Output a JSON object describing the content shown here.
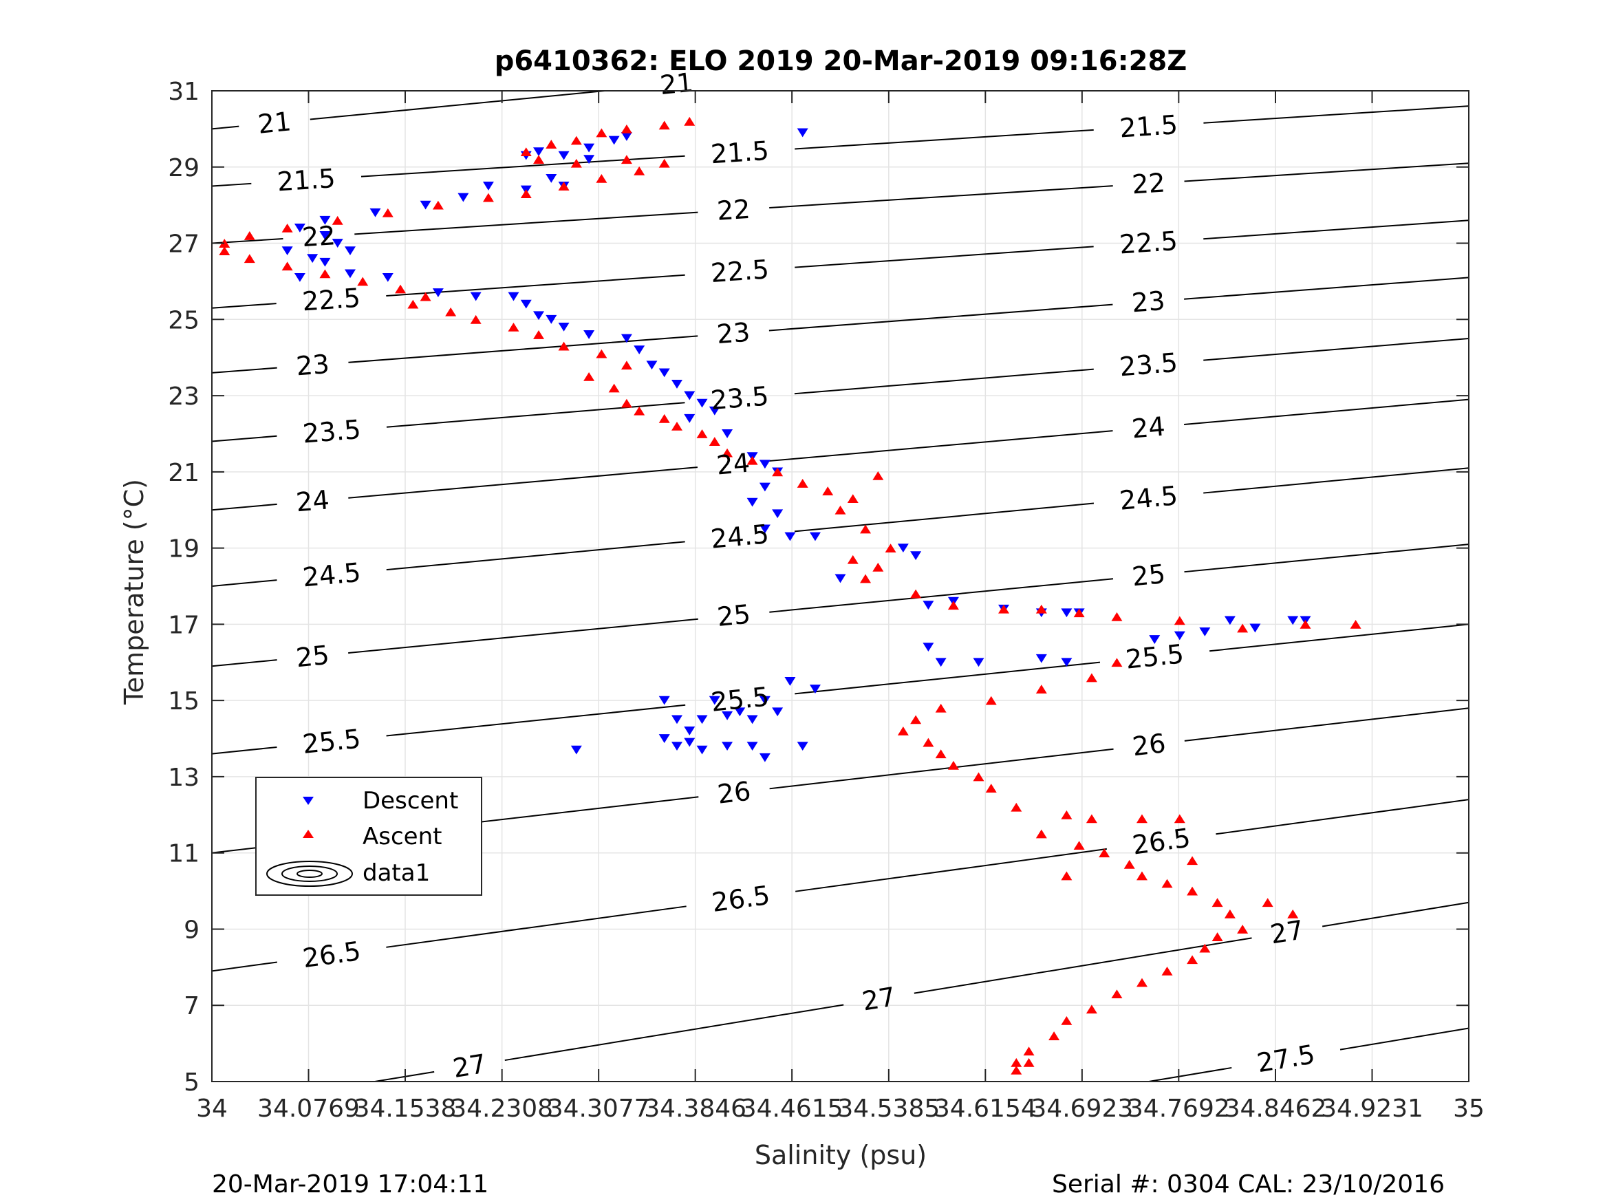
{
  "chart_data": {
    "type": "scatter",
    "title": "p6410362: ELO 2019 20-Mar-2019 09:16:28Z",
    "xlabel": "Salinity (psu)",
    "ylabel": "Temperature (°C)",
    "xlim": [
      34,
      35
    ],
    "ylim": [
      5,
      31
    ],
    "x_ticks": [
      34,
      34.0769,
      34.1538,
      34.2308,
      34.3077,
      34.3846,
      34.4615,
      34.5385,
      34.6154,
      34.6923,
      34.7692,
      34.8462,
      34.9231,
      35
    ],
    "x_tick_labels": [
      "34",
      "34.0769",
      "34.1538",
      "34.2308",
      "34.3077",
      "34.3846",
      "34.4615",
      "34.5385",
      "34.6154",
      "34.6923",
      "34.7692",
      "34.8462",
      "34.9231",
      "35"
    ],
    "y_ticks": [
      5,
      7,
      9,
      11,
      13,
      15,
      17,
      19,
      21,
      23,
      25,
      27,
      29,
      31
    ],
    "y_tick_labels": [
      "5",
      "7",
      "9",
      "11",
      "13",
      "15",
      "17",
      "19",
      "21",
      "23",
      "25",
      "27",
      "29",
      "31"
    ],
    "grid": true,
    "legend_placement": "lower-left",
    "legend": [
      "Descent",
      "Ascent",
      "data1"
    ],
    "contours": {
      "label": "data1",
      "levels": [
        21,
        21.5,
        22,
        22.5,
        23,
        23.5,
        24,
        24.5,
        25,
        25.5,
        26,
        26.5,
        27,
        27.5
      ],
      "lines": [
        {
          "level": 21,
          "y_at_34": 30.0,
          "y_at_35": 33.2,
          "labels": [
            [
              34.05,
              30.1
            ],
            [
              34.37,
              31.1
            ]
          ]
        },
        {
          "level": 21.5,
          "y_at_34": 28.5,
          "y_at_35": 30.6,
          "labels": [
            [
              34.075,
              28.7
            ],
            [
              34.42,
              29.4
            ],
            [
              34.745,
              30.2
            ]
          ]
        },
        {
          "level": 22,
          "y_at_34": 27.0,
          "y_at_35": 29.1,
          "labels": [
            [
              34.085,
              27.2
            ],
            [
              34.415,
              27.9
            ],
            [
              34.745,
              28.7
            ]
          ]
        },
        {
          "level": 22.5,
          "y_at_34": 25.3,
          "y_at_35": 27.6,
          "labels": [
            [
              34.095,
              25.5
            ],
            [
              34.42,
              26.3
            ],
            [
              34.745,
              27.1
            ]
          ]
        },
        {
          "level": 23,
          "y_at_34": 23.6,
          "y_at_35": 26.1,
          "labels": [
            [
              34.08,
              23.9
            ],
            [
              34.415,
              24.6
            ],
            [
              34.745,
              25.5
            ]
          ]
        },
        {
          "level": 23.5,
          "y_at_34": 21.8,
          "y_at_35": 24.5,
          "labels": [
            [
              34.095,
              22.2
            ],
            [
              34.42,
              22.9
            ],
            [
              34.745,
              23.9
            ]
          ]
        },
        {
          "level": 24,
          "y_at_34": 20.0,
          "y_at_35": 22.9,
          "labels": [
            [
              34.08,
              20.3
            ],
            [
              34.415,
              21.1
            ],
            [
              34.745,
              22.2
            ]
          ]
        },
        {
          "level": 24.5,
          "y_at_34": 18.0,
          "y_at_35": 21.1,
          "labels": [
            [
              34.095,
              18.4
            ],
            [
              34.42,
              19.3
            ],
            [
              34.745,
              20.4
            ]
          ]
        },
        {
          "level": 25,
          "y_at_34": 15.9,
          "y_at_35": 19.1,
          "labels": [
            [
              34.08,
              16.2
            ],
            [
              34.415,
              17.3
            ],
            [
              34.745,
              18.4
            ]
          ]
        },
        {
          "level": 25.5,
          "y_at_34": 13.6,
          "y_at_35": 17.0,
          "labels": [
            [
              34.095,
              14.0
            ],
            [
              34.42,
              15.1
            ],
            [
              34.75,
              16.2
            ]
          ]
        },
        {
          "level": 26,
          "y_at_34": 11.0,
          "y_at_35": 14.8,
          "labels": [
            [
              34.08,
              11.4
            ],
            [
              34.415,
              12.7
            ],
            [
              34.745,
              14.0
            ]
          ]
        },
        {
          "level": 26.5,
          "y_at_34": 7.9,
          "y_at_35": 12.4,
          "labels": [
            [
              34.095,
              8.4
            ],
            [
              34.42,
              10.0
            ],
            [
              34.755,
              11.4
            ]
          ]
        },
        {
          "level": 27,
          "y_at_34": 4.3,
          "y_at_35": 9.7,
          "labels": [
            [
              34.205,
              5.4
            ],
            [
              34.53,
              7.3
            ],
            [
              34.855,
              9.0
            ]
          ]
        },
        {
          "level": 27.5,
          "y_at_34": 0.9,
          "y_at_35": 6.4,
          "labels": [
            [
              34.855,
              5.5
            ]
          ]
        }
      ]
    },
    "series": [
      {
        "name": "Descent",
        "color": "#0000ff",
        "marker": "triangle-down",
        "points": [
          [
            34.47,
            29.9
          ],
          [
            34.33,
            29.8
          ],
          [
            34.32,
            29.7
          ],
          [
            34.3,
            29.5
          ],
          [
            34.26,
            29.4
          ],
          [
            34.25,
            29.3
          ],
          [
            34.28,
            29.3
          ],
          [
            34.3,
            29.2
          ],
          [
            34.27,
            28.7
          ],
          [
            34.28,
            28.5
          ],
          [
            34.25,
            28.4
          ],
          [
            34.22,
            28.5
          ],
          [
            34.2,
            28.2
          ],
          [
            34.17,
            28.0
          ],
          [
            34.13,
            27.8
          ],
          [
            34.09,
            27.6
          ],
          [
            34.07,
            27.4
          ],
          [
            34.09,
            27.2
          ],
          [
            34.1,
            27.0
          ],
          [
            34.11,
            26.8
          ],
          [
            34.08,
            26.6
          ],
          [
            34.06,
            26.8
          ],
          [
            34.09,
            26.5
          ],
          [
            34.07,
            26.1
          ],
          [
            34.11,
            26.2
          ],
          [
            34.14,
            26.1
          ],
          [
            34.18,
            25.7
          ],
          [
            34.21,
            25.6
          ],
          [
            34.24,
            25.6
          ],
          [
            34.25,
            25.4
          ],
          [
            34.26,
            25.1
          ],
          [
            34.27,
            25.0
          ],
          [
            34.28,
            24.8
          ],
          [
            34.3,
            24.6
          ],
          [
            34.33,
            24.5
          ],
          [
            34.34,
            24.2
          ],
          [
            34.35,
            23.8
          ],
          [
            34.36,
            23.6
          ],
          [
            34.37,
            23.3
          ],
          [
            34.38,
            23.0
          ],
          [
            34.39,
            22.8
          ],
          [
            34.4,
            22.6
          ],
          [
            34.38,
            22.4
          ],
          [
            34.41,
            22.0
          ],
          [
            34.43,
            21.4
          ],
          [
            34.44,
            21.2
          ],
          [
            34.45,
            21.0
          ],
          [
            34.44,
            20.6
          ],
          [
            34.43,
            20.2
          ],
          [
            34.45,
            19.9
          ],
          [
            34.44,
            19.5
          ],
          [
            34.46,
            19.3
          ],
          [
            34.48,
            19.3
          ],
          [
            34.5,
            18.2
          ],
          [
            34.55,
            19.0
          ],
          [
            34.56,
            18.8
          ],
          [
            34.57,
            17.5
          ],
          [
            34.59,
            17.6
          ],
          [
            34.63,
            17.4
          ],
          [
            34.66,
            17.3
          ],
          [
            34.68,
            17.3
          ],
          [
            34.69,
            17.3
          ],
          [
            34.57,
            16.4
          ],
          [
            34.58,
            16.0
          ],
          [
            34.61,
            16.0
          ],
          [
            34.66,
            16.1
          ],
          [
            34.68,
            16.0
          ],
          [
            34.46,
            15.5
          ],
          [
            34.48,
            15.3
          ],
          [
            34.44,
            15.0
          ],
          [
            34.4,
            15.0
          ],
          [
            34.36,
            15.0
          ],
          [
            34.37,
            14.5
          ],
          [
            34.38,
            14.2
          ],
          [
            34.39,
            14.5
          ],
          [
            34.41,
            14.6
          ],
          [
            34.42,
            14.7
          ],
          [
            34.43,
            14.5
          ],
          [
            34.45,
            14.7
          ],
          [
            34.36,
            14.0
          ],
          [
            34.37,
            13.8
          ],
          [
            34.38,
            13.9
          ],
          [
            34.39,
            13.7
          ],
          [
            34.41,
            13.8
          ],
          [
            34.43,
            13.8
          ],
          [
            34.44,
            13.5
          ],
          [
            34.47,
            13.8
          ],
          [
            34.29,
            13.7
          ],
          [
            34.75,
            16.6
          ],
          [
            34.77,
            16.7
          ],
          [
            34.79,
            16.8
          ],
          [
            34.81,
            17.1
          ],
          [
            34.83,
            16.9
          ],
          [
            34.86,
            17.1
          ],
          [
            34.87,
            17.1
          ]
        ]
      },
      {
        "name": "Ascent",
        "color": "#ff0000",
        "marker": "triangle-up",
        "points": [
          [
            34.38,
            30.2
          ],
          [
            34.36,
            30.1
          ],
          [
            34.33,
            30.0
          ],
          [
            34.31,
            29.9
          ],
          [
            34.29,
            29.7
          ],
          [
            34.27,
            29.6
          ],
          [
            34.25,
            29.4
          ],
          [
            34.26,
            29.2
          ],
          [
            34.29,
            29.1
          ],
          [
            34.33,
            29.2
          ],
          [
            34.36,
            29.1
          ],
          [
            34.34,
            28.9
          ],
          [
            34.31,
            28.7
          ],
          [
            34.28,
            28.5
          ],
          [
            34.25,
            28.3
          ],
          [
            34.22,
            28.2
          ],
          [
            34.18,
            28.0
          ],
          [
            34.14,
            27.8
          ],
          [
            34.1,
            27.6
          ],
          [
            34.06,
            27.4
          ],
          [
            34.03,
            27.2
          ],
          [
            34.01,
            27.0
          ],
          [
            34.01,
            26.8
          ],
          [
            34.03,
            26.6
          ],
          [
            34.06,
            26.4
          ],
          [
            34.09,
            26.2
          ],
          [
            34.12,
            26.0
          ],
          [
            34.15,
            25.8
          ],
          [
            34.17,
            25.6
          ],
          [
            34.16,
            25.4
          ],
          [
            34.19,
            25.2
          ],
          [
            34.21,
            25.0
          ],
          [
            34.24,
            24.8
          ],
          [
            34.26,
            24.6
          ],
          [
            34.28,
            24.3
          ],
          [
            34.31,
            24.1
          ],
          [
            34.33,
            23.8
          ],
          [
            34.3,
            23.5
          ],
          [
            34.32,
            23.2
          ],
          [
            34.33,
            22.8
          ],
          [
            34.34,
            22.6
          ],
          [
            34.36,
            22.4
          ],
          [
            34.37,
            22.2
          ],
          [
            34.39,
            22.0
          ],
          [
            34.4,
            21.8
          ],
          [
            34.41,
            21.5
          ],
          [
            34.43,
            21.3
          ],
          [
            34.45,
            21.0
          ],
          [
            34.47,
            20.7
          ],
          [
            34.49,
            20.5
          ],
          [
            34.51,
            20.3
          ],
          [
            34.53,
            20.9
          ],
          [
            34.5,
            20.0
          ],
          [
            34.52,
            19.5
          ],
          [
            34.51,
            18.7
          ],
          [
            34.52,
            18.2
          ],
          [
            34.53,
            18.5
          ],
          [
            34.54,
            19.0
          ],
          [
            34.56,
            17.8
          ],
          [
            34.59,
            17.5
          ],
          [
            34.63,
            17.4
          ],
          [
            34.66,
            17.4
          ],
          [
            34.69,
            17.3
          ],
          [
            34.72,
            17.2
          ],
          [
            34.77,
            17.1
          ],
          [
            34.82,
            16.9
          ],
          [
            34.87,
            17.0
          ],
          [
            34.91,
            17.0
          ],
          [
            34.72,
            16.0
          ],
          [
            34.7,
            15.6
          ],
          [
            34.66,
            15.3
          ],
          [
            34.62,
            15.0
          ],
          [
            34.58,
            14.8
          ],
          [
            34.56,
            14.5
          ],
          [
            34.55,
            14.2
          ],
          [
            34.57,
            13.9
          ],
          [
            34.58,
            13.6
          ],
          [
            34.59,
            13.3
          ],
          [
            34.61,
            13.0
          ],
          [
            34.62,
            12.7
          ],
          [
            34.64,
            12.2
          ],
          [
            34.68,
            12.0
          ],
          [
            34.7,
            11.9
          ],
          [
            34.66,
            11.5
          ],
          [
            34.69,
            11.2
          ],
          [
            34.71,
            11.0
          ],
          [
            34.73,
            10.7
          ],
          [
            34.74,
            10.4
          ],
          [
            34.76,
            10.2
          ],
          [
            34.78,
            10.0
          ],
          [
            34.8,
            9.7
          ],
          [
            34.81,
            9.4
          ],
          [
            34.82,
            9.0
          ],
          [
            34.8,
            8.8
          ],
          [
            34.79,
            8.5
          ],
          [
            34.78,
            8.2
          ],
          [
            34.76,
            7.9
          ],
          [
            34.74,
            7.6
          ],
          [
            34.72,
            7.3
          ],
          [
            34.7,
            6.9
          ],
          [
            34.68,
            6.6
          ],
          [
            34.67,
            6.2
          ],
          [
            34.65,
            5.8
          ],
          [
            34.64,
            5.5
          ],
          [
            34.64,
            5.3
          ],
          [
            34.65,
            5.5
          ],
          [
            34.84,
            9.7
          ],
          [
            34.86,
            9.4
          ],
          [
            34.74,
            11.9
          ],
          [
            34.77,
            11.9
          ],
          [
            34.78,
            10.8
          ],
          [
            34.68,
            10.4
          ]
        ]
      }
    ]
  },
  "footer": {
    "timestamp": "20-Mar-2019 17:04:11",
    "serial": "Serial #: 0304  CAL: 23/10/2016"
  }
}
